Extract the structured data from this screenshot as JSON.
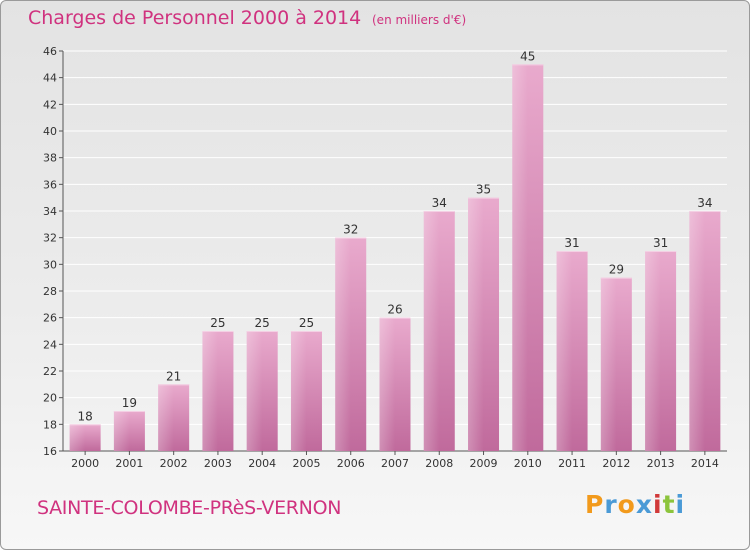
{
  "header": {
    "title": "Charges de Personnel 2000 à 2014",
    "unit": "(en milliers d'€)"
  },
  "footer": {
    "commune": "SAINTE-COLOMBE-PRèS-VERNON",
    "logo_text": "Proxiti",
    "logo_letters": [
      "P",
      "r",
      "o",
      "x",
      "i",
      "t",
      "i"
    ],
    "logo_colors": [
      "#f29a1c",
      "#4a9ad6",
      "#f29a1c",
      "#4a9ad6",
      "#d13a3a",
      "#8cc43c",
      "#4a9ad6"
    ]
  },
  "chart_data": {
    "type": "bar",
    "title": "Charges de Personnel 2000 à 2014",
    "subtitle": "(en milliers d'€)",
    "xlabel": "",
    "ylabel": "",
    "categories": [
      "2000",
      "2001",
      "2002",
      "2003",
      "2004",
      "2005",
      "2006",
      "2007",
      "2008",
      "2009",
      "2010",
      "2011",
      "2012",
      "2013",
      "2014"
    ],
    "values": [
      18,
      19,
      21,
      25,
      25,
      25,
      32,
      26,
      34,
      35,
      45,
      31,
      29,
      31,
      34
    ],
    "ylim": [
      16,
      46
    ],
    "yticks": [
      16,
      18,
      20,
      22,
      24,
      26,
      28,
      30,
      32,
      34,
      36,
      38,
      40,
      42,
      44,
      46
    ],
    "grid": true,
    "bar_color": "#d87db0",
    "bar_color_light": "#ebafd0",
    "bar_color_dark": "#b55e92",
    "text_color": "#d0327f"
  }
}
